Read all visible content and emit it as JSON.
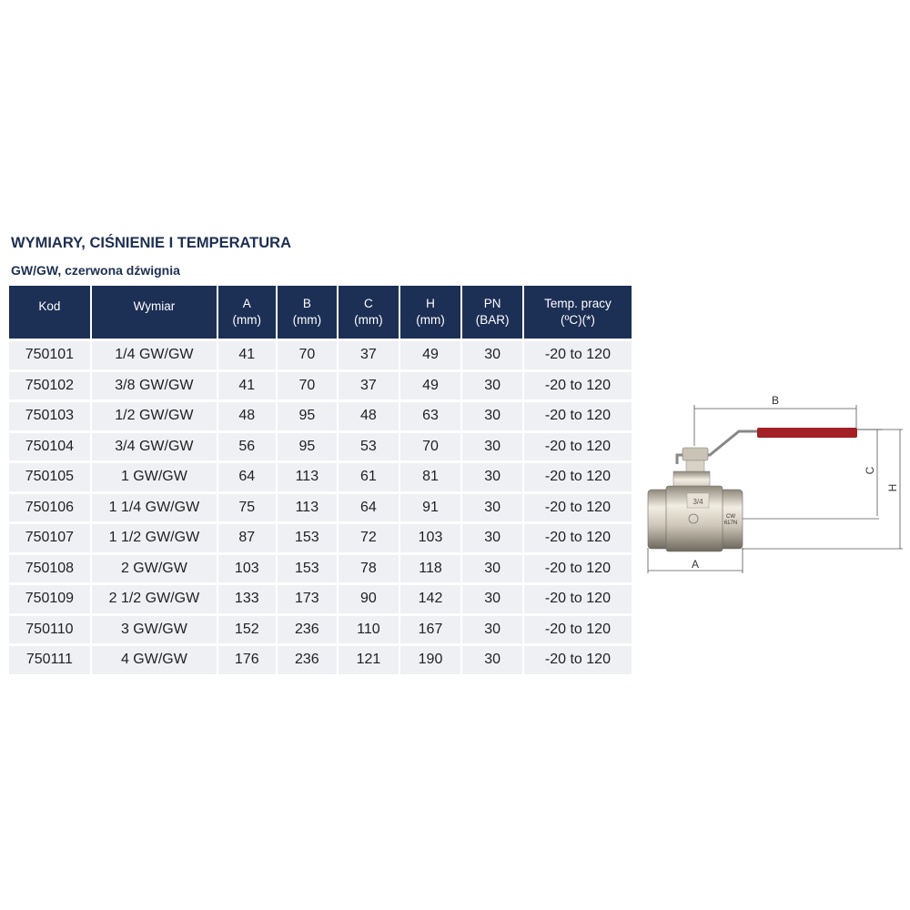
{
  "title": "WYMIARY, CIŚNIENIE I TEMPERATURA",
  "subtitle": "GW/GW, czerwona dźwignia",
  "table": {
    "headers": [
      {
        "line1": "Kod",
        "line2": ""
      },
      {
        "line1": "Wymiar",
        "line2": ""
      },
      {
        "line1": "A",
        "line2": "(mm)"
      },
      {
        "line1": "B",
        "line2": "(mm)"
      },
      {
        "line1": "C",
        "line2": "(mm)"
      },
      {
        "line1": "H",
        "line2": "(mm)"
      },
      {
        "line1": "PN",
        "line2": "(BAR)"
      },
      {
        "line1": "Temp. pracy",
        "line2": "(ºC)(*)"
      }
    ],
    "rows": [
      [
        "750101",
        "1/4 GW/GW",
        "41",
        "70",
        "37",
        "49",
        "30",
        "-20 to 120"
      ],
      [
        "750102",
        "3/8 GW/GW",
        "41",
        "70",
        "37",
        "49",
        "30",
        "-20 to 120"
      ],
      [
        "750103",
        "1/2 GW/GW",
        "48",
        "95",
        "48",
        "63",
        "30",
        "-20 to 120"
      ],
      [
        "750104",
        "3/4 GW/GW",
        "56",
        "95",
        "53",
        "70",
        "30",
        "-20 to 120"
      ],
      [
        "750105",
        "1 GW/GW",
        "64",
        "113",
        "61",
        "81",
        "30",
        "-20 to 120"
      ],
      [
        "750106",
        "1 1/4 GW/GW",
        "75",
        "113",
        "64",
        "91",
        "30",
        "-20 to 120"
      ],
      [
        "750107",
        "1 1/2 GW/GW",
        "87",
        "153",
        "72",
        "103",
        "30",
        "-20 to 120"
      ],
      [
        "750108",
        "2 GW/GW",
        "103",
        "153",
        "78",
        "118",
        "30",
        "-20 to 120"
      ],
      [
        "750109",
        "2 1/2 GW/GW",
        "133",
        "173",
        "90",
        "142",
        "30",
        "-20 to 120"
      ],
      [
        "750110",
        "3 GW/GW",
        "152",
        "236",
        "110",
        "167",
        "30",
        "-20 to 120"
      ],
      [
        "750111",
        "4 GW/GW",
        "176",
        "236",
        "121",
        "190",
        "30",
        "-20 to 120"
      ]
    ]
  },
  "drawing": {
    "dim_a": "A",
    "dim_b": "B",
    "dim_c": "C",
    "dim_h": "H",
    "size_mark": "3/4",
    "material_mark_1": "CW",
    "material_mark_2": "617N",
    "lever_color": "#a32126"
  }
}
